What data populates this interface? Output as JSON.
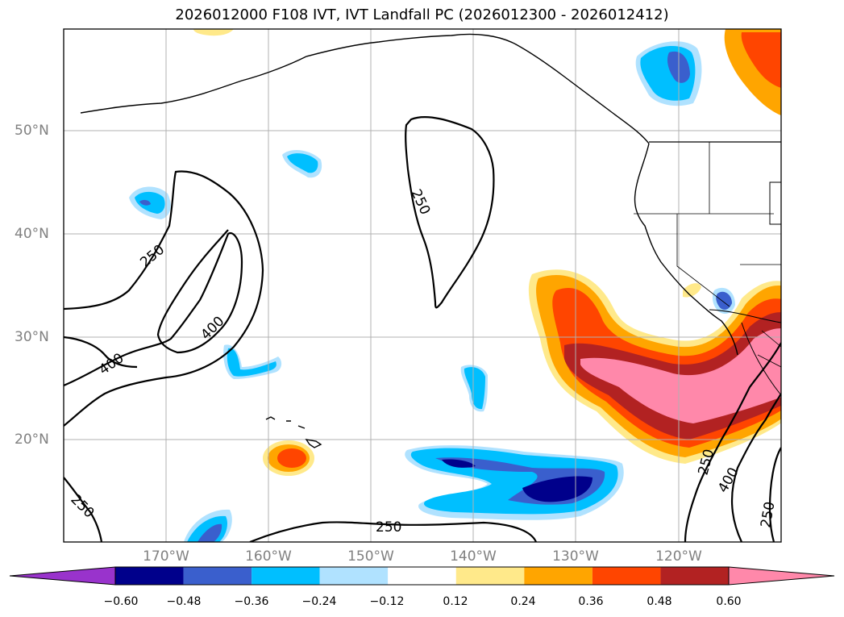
{
  "title": "2026012000 F108 IVT, IVT Landfall PC (2026012300 - 2026012412)",
  "lat_labels": [
    "50°N",
    "40°N",
    "30°N",
    "20°N"
  ],
  "lon_labels": [
    "170°W",
    "160°W",
    "150°W",
    "140°W",
    "130°W",
    "120°W"
  ],
  "contour_labels": [
    "250",
    "250",
    "400",
    "400",
    "250",
    "250",
    "400",
    "250",
    "250"
  ],
  "colorbar": {
    "ticks": [
      "−0.60",
      "−0.48",
      "−0.36",
      "−0.24",
      "−0.12",
      "0.12",
      "0.24",
      "0.36",
      "0.48",
      "0.60"
    ],
    "colors": [
      "#9933cc",
      "#00008b",
      "#3a5fcd",
      "#00bfff",
      "#b0e2ff",
      "#ffffff",
      "#ffe98a",
      "#ffa500",
      "#ff4500",
      "#b22222",
      "#ff88aa"
    ]
  },
  "colors": {
    "frame": "#000000",
    "grid": "#b0b0b0",
    "contour": "#000000",
    "coast": "#000000"
  }
}
